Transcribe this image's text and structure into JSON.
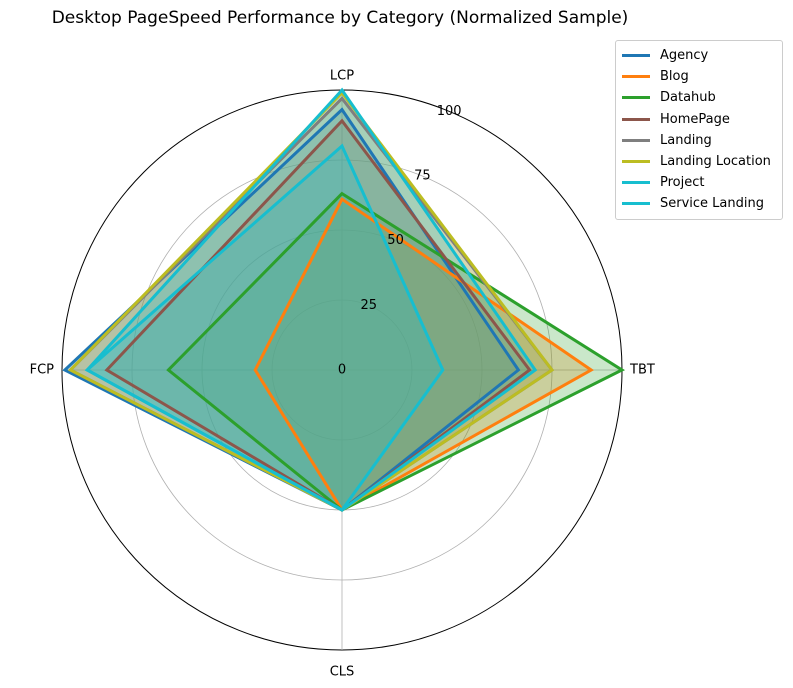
{
  "chart_data": {
    "type": "radar",
    "title": "Desktop PageSpeed Performance by Category (Normalized Sample)",
    "axes": [
      "LCP",
      "TBT",
      "CLS",
      "FCP"
    ],
    "rlim": [
      0,
      100
    ],
    "rticks": [
      0,
      25,
      50,
      75,
      100
    ],
    "rtick_labels": [
      "0",
      "25",
      "50",
      "75",
      "100"
    ],
    "grid": true,
    "legend_position": "top-right",
    "series": [
      {
        "name": "Agency",
        "color": "#1f77b4",
        "values": [
          93,
          63,
          50,
          99
        ]
      },
      {
        "name": "Blog",
        "color": "#ff7f0e",
        "values": [
          61,
          89,
          50,
          31
        ]
      },
      {
        "name": "Datahub",
        "color": "#2ca02c",
        "values": [
          63,
          100,
          50,
          62
        ]
      },
      {
        "name": "HomePage",
        "color": "#8c564b",
        "values": [
          89,
          67,
          50,
          84
        ]
      },
      {
        "name": "Landing",
        "color": "#7f7f7f",
        "values": [
          97,
          75,
          50,
          97
        ]
      },
      {
        "name": "Landing Location",
        "color": "#bcbd22",
        "values": [
          99,
          75,
          50,
          97
        ]
      },
      {
        "name": "Project",
        "color": "#17becf",
        "values": [
          100,
          69,
          50,
          91
        ]
      },
      {
        "name": "Service Landing",
        "color": "#17becf",
        "values": [
          80,
          36,
          50,
          91
        ]
      }
    ]
  }
}
